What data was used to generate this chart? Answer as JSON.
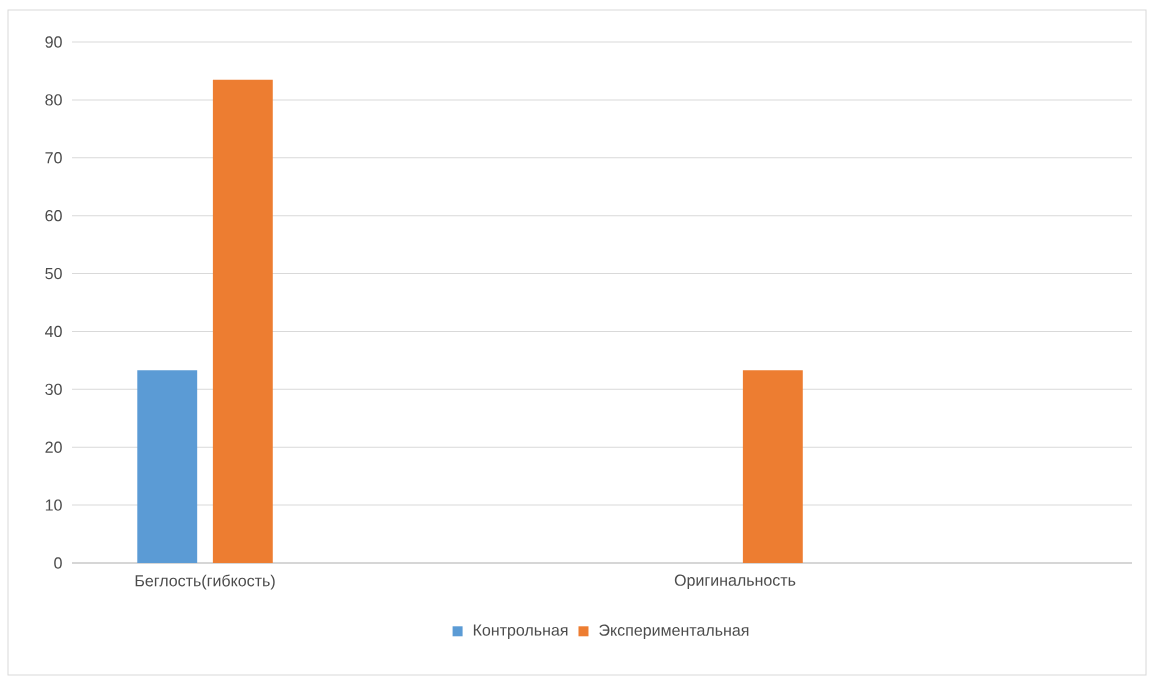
{
  "chart_data": {
    "type": "bar",
    "categories": [
      "Беглость(гибкость)",
      "Оригинальность"
    ],
    "series": [
      {
        "name": "Контрольная",
        "color": "#5b9bd5",
        "values": [
          33.3,
          0
        ]
      },
      {
        "name": "Экспериментальная",
        "color": "#ed7d31",
        "values": [
          83.5,
          33.3
        ]
      }
    ],
    "ylim": [
      0,
      90
    ],
    "yticks": [
      0,
      10,
      20,
      30,
      40,
      50,
      60,
      70,
      80,
      90
    ],
    "grid": "y",
    "legend": "bottom"
  }
}
